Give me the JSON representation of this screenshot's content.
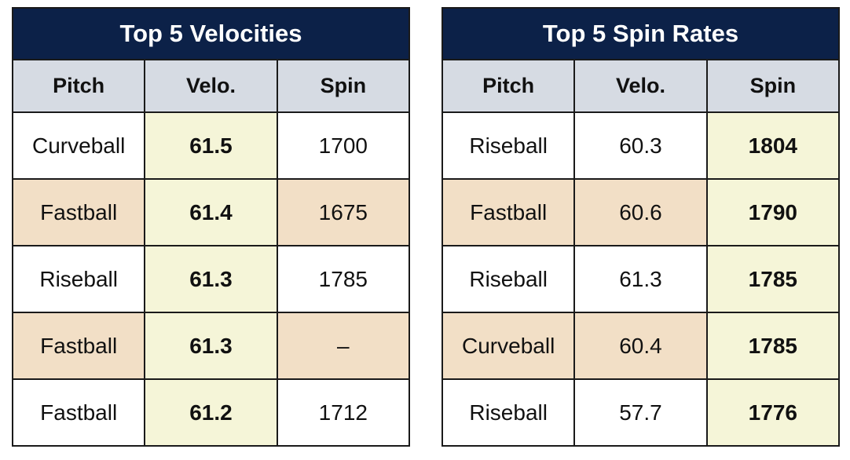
{
  "colors": {
    "title_bg": "#0c2148",
    "header_bg": "#d6dbe3",
    "alt_row_bg": "#f2dfc6",
    "highlight_bg": "#f5f5d8"
  },
  "velocities": {
    "title": "Top 5 Velocities",
    "headers": [
      "Pitch",
      "Velo.",
      "Spin"
    ],
    "rows": [
      {
        "pitch": "Curveball",
        "velo": "61.5",
        "spin": "1700"
      },
      {
        "pitch": "Fastball",
        "velo": "61.4",
        "spin": "1675"
      },
      {
        "pitch": "Riseball",
        "velo": "61.3",
        "spin": "1785"
      },
      {
        "pitch": "Fastball",
        "velo": "61.3",
        "spin": "–"
      },
      {
        "pitch": "Fastball",
        "velo": "61.2",
        "spin": "1712"
      }
    ]
  },
  "spin_rates": {
    "title": "Top 5 Spin Rates",
    "headers": [
      "Pitch",
      "Velo.",
      "Spin"
    ],
    "rows": [
      {
        "pitch": "Riseball",
        "velo": "60.3",
        "spin": "1804"
      },
      {
        "pitch": "Fastball",
        "velo": "60.6",
        "spin": "1790"
      },
      {
        "pitch": "Riseball",
        "velo": "61.3",
        "spin": "1785"
      },
      {
        "pitch": "Curveball",
        "velo": "60.4",
        "spin": "1785"
      },
      {
        "pitch": "Riseball",
        "velo": "57.7",
        "spin": "1776"
      }
    ]
  }
}
